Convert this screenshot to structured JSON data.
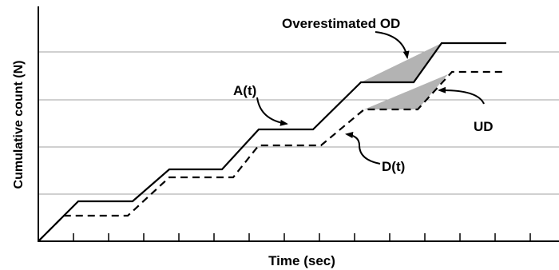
{
  "axes": {
    "xlabel": "Time (sec)",
    "ylabel": "Cumulative count (N)"
  },
  "curves": {
    "arrival": "A(t)",
    "departure": "D(t)"
  },
  "annotations": {
    "overestimated": "Overestimated OD",
    "underestimated": "UD"
  },
  "colors": {
    "lines": "#000000",
    "grid": "#a0a0a0",
    "shade": "#b3b3b3"
  }
}
